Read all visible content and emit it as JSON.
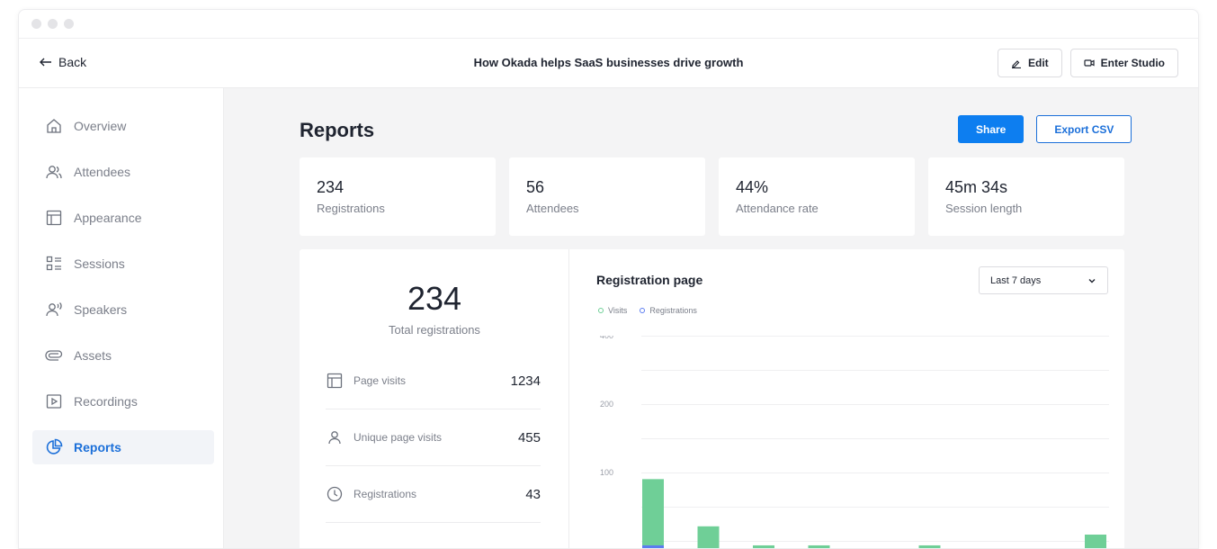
{
  "header": {
    "back_label": "Back",
    "event_title": "How Okada helps SaaS businesses drive growth",
    "edit_label": "Edit",
    "studio_label": "Enter Studio"
  },
  "sidebar": {
    "items": [
      {
        "label": "Overview",
        "icon": "home-icon",
        "active": false
      },
      {
        "label": "Attendees",
        "icon": "users-icon",
        "active": false
      },
      {
        "label": "Appearance",
        "icon": "layout-icon",
        "active": false
      },
      {
        "label": "Sessions",
        "icon": "list-icon",
        "active": false
      },
      {
        "label": "Speakers",
        "icon": "speaker-icon",
        "active": false
      },
      {
        "label": "Assets",
        "icon": "paperclip-icon",
        "active": false
      },
      {
        "label": "Recordings",
        "icon": "play-icon",
        "active": false
      },
      {
        "label": "Reports",
        "icon": "pie-chart-icon",
        "active": true
      }
    ]
  },
  "page": {
    "title": "Reports",
    "share_label": "Share",
    "export_label": "Export CSV"
  },
  "stats": [
    {
      "value": "234",
      "label": "Registrations"
    },
    {
      "value": "56",
      "label": "Attendees"
    },
    {
      "value": "44%",
      "label": "Attendance rate"
    },
    {
      "value": "45m 34s",
      "label": "Session length"
    }
  ],
  "summary": {
    "total_value": "234",
    "total_label": "Total registrations",
    "metrics": [
      {
        "label": "Page visits",
        "value": "1234",
        "icon": "layout-icon"
      },
      {
        "label": "Unique page visits",
        "value": "455",
        "icon": "user-icon"
      },
      {
        "label": "Registrations",
        "value": "43",
        "icon": "clock-icon"
      }
    ]
  },
  "registration_chart": {
    "title": "Registration page",
    "range": "Last 7 days",
    "legend": [
      "Visits",
      "Registrations"
    ]
  },
  "colors": {
    "visits": "#6fcf97",
    "registrations": "#5b7cf0",
    "accent": "#0d7ef0"
  },
  "chart_data": {
    "type": "bar",
    "title": "Registration page",
    "xlabel": "",
    "ylabel": "",
    "y_ticks": [
      400,
      200,
      100
    ],
    "grid": true,
    "legend_position": "top-left",
    "series": [
      {
        "name": "Visits",
        "values": [
          92,
          35,
          12,
          12,
          0,
          12,
          0,
          6,
          25
        ]
      },
      {
        "name": "Registrations",
        "values": [
          12,
          0,
          0,
          0,
          0,
          0,
          0,
          0,
          0
        ]
      }
    ]
  }
}
